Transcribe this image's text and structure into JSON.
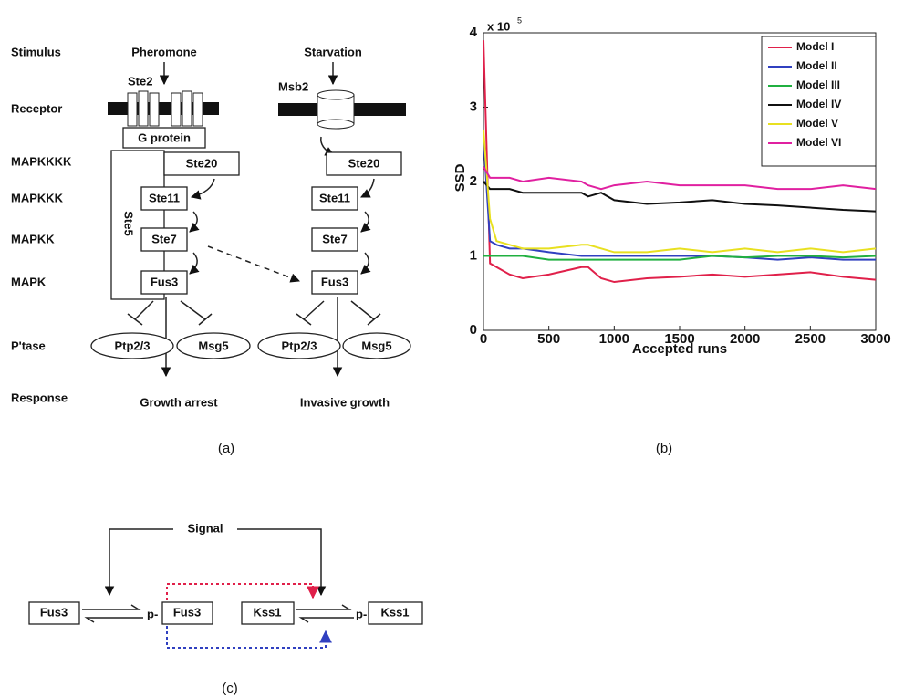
{
  "panel_a": {
    "row_labels": [
      "Stimulus",
      "Receptor",
      "MAPKKKK",
      "MAPKKK",
      "MAPKK",
      "MAPK",
      "P'tase",
      "Response"
    ],
    "pheromone_branch": {
      "stimulus": "Pheromone",
      "receptor": "Ste2",
      "g_protein": "G protein",
      "scaffold": "Ste5",
      "mapkkkk": "Ste20",
      "mapkkk": "Ste11",
      "mapkk": "Ste7",
      "mapk": "Fus3",
      "phosphatases": [
        "Ptp2/3",
        "Msg5"
      ],
      "response": "Growth arrest"
    },
    "starvation_branch": {
      "stimulus": "Starvation",
      "receptor": "Msb2",
      "mapkkkk": "Ste20",
      "mapkkk": "Ste11",
      "mapkk": "Ste7",
      "mapk": "Fus3",
      "phosphatases": [
        "Ptp2/3",
        "Msg5"
      ],
      "response": "Invasive growth"
    },
    "caption": "(a)"
  },
  "chart_data": {
    "type": "line",
    "x_label": "Accepted runs",
    "y_label": "SSD",
    "y_multiplier": {
      "base": "x 10",
      "exponent": "5"
    },
    "x": [
      0,
      50,
      100,
      200,
      300,
      500,
      750,
      800,
      900,
      1000,
      1250,
      1500,
      1750,
      2000,
      2250,
      2500,
      2750,
      3000
    ],
    "series": [
      {
        "name": "Model I",
        "color": "#e0204a",
        "values": [
          3.9,
          0.9,
          0.85,
          0.75,
          0.7,
          0.75,
          0.85,
          0.85,
          0.7,
          0.65,
          0.7,
          0.72,
          0.75,
          0.72,
          0.75,
          0.78,
          0.72,
          0.68
        ]
      },
      {
        "name": "Model II",
        "color": "#3040c0",
        "values": [
          2.6,
          1.2,
          1.15,
          1.1,
          1.1,
          1.05,
          1.0,
          1.0,
          1.0,
          1.0,
          1.0,
          1.0,
          1.0,
          0.98,
          0.95,
          0.98,
          0.95,
          0.95
        ]
      },
      {
        "name": "Model III",
        "color": "#20b040",
        "values": [
          1.0,
          1.0,
          1.0,
          1.0,
          1.0,
          0.95,
          0.95,
          0.95,
          0.95,
          0.95,
          0.95,
          0.95,
          1.0,
          0.98,
          1.0,
          1.0,
          0.98,
          1.0
        ]
      },
      {
        "name": "Model IV",
        "color": "#101010",
        "values": [
          2.0,
          1.9,
          1.9,
          1.9,
          1.85,
          1.85,
          1.85,
          1.8,
          1.85,
          1.75,
          1.7,
          1.72,
          1.75,
          1.7,
          1.68,
          1.65,
          1.62,
          1.6
        ]
      },
      {
        "name": "Model V",
        "color": "#e8e020",
        "values": [
          2.7,
          1.5,
          1.2,
          1.15,
          1.1,
          1.1,
          1.15,
          1.15,
          1.1,
          1.05,
          1.05,
          1.1,
          1.05,
          1.1,
          1.05,
          1.1,
          1.05,
          1.1
        ]
      },
      {
        "name": "Model VI",
        "color": "#e020a0",
        "values": [
          2.2,
          2.05,
          2.05,
          2.05,
          2.0,
          2.05,
          2.0,
          1.95,
          1.9,
          1.95,
          2.0,
          1.95,
          1.95,
          1.95,
          1.9,
          1.9,
          1.95,
          1.9
        ]
      }
    ],
    "xlim": [
      0,
      3000
    ],
    "xticks": [
      0,
      500,
      1000,
      1500,
      2000,
      2500,
      3000
    ],
    "ylim": [
      0,
      4
    ],
    "yticks": [
      0,
      1,
      2,
      3,
      4
    ],
    "legend": "upper right",
    "caption": "(b)"
  },
  "panel_c": {
    "signal": "Signal",
    "species": [
      {
        "label": "Fus3"
      },
      {
        "prefix": "p-",
        "label": "Fus3"
      },
      {
        "label": "Kss1"
      },
      {
        "prefix": "p-",
        "label": "Kss1"
      }
    ],
    "caption": "(c)"
  }
}
